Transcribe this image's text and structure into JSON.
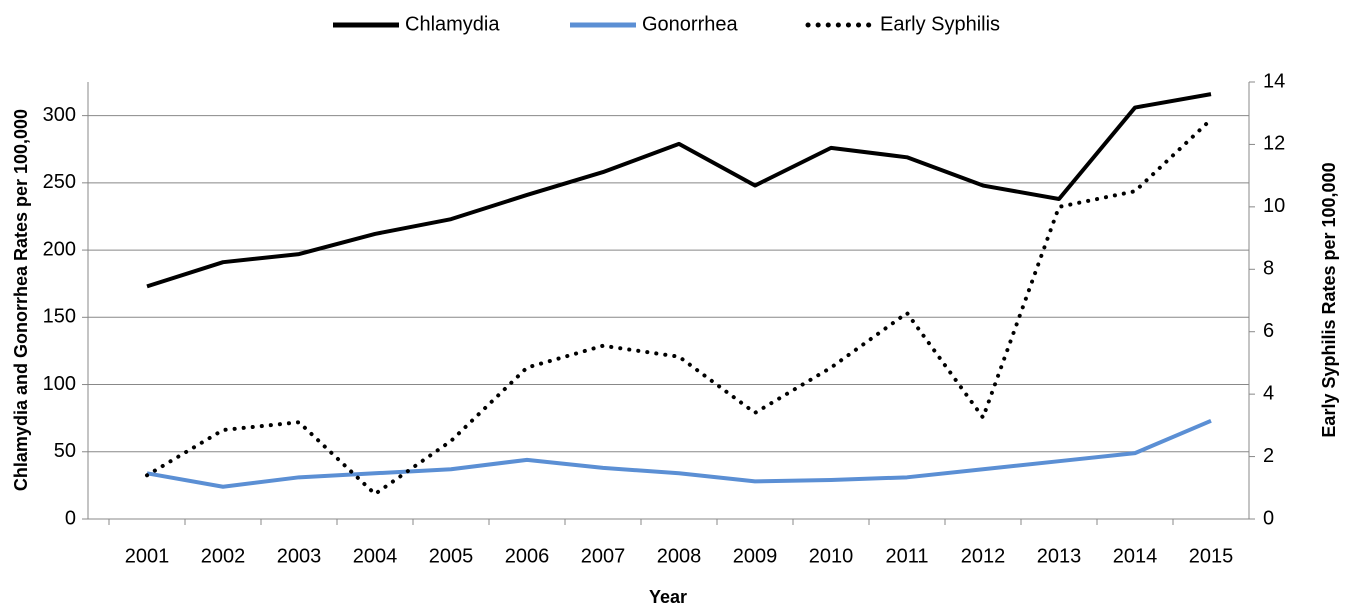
{
  "chart_data": {
    "type": "line",
    "x_label": "Year",
    "y_label": "Chlamydia and Gonorrhea Rates per 100,000",
    "y2_label": "Early Syphilis Rates per 100,000",
    "categories": [
      "2001",
      "2002",
      "2003",
      "2004",
      "2005",
      "2006",
      "2007",
      "2008",
      "2009",
      "2010",
      "2011",
      "2012",
      "2013",
      "2014",
      "2015"
    ],
    "series": [
      {
        "name": "Chlamydia",
        "color": "#000000",
        "style": "solid",
        "values": [
          173,
          191,
          197,
          212,
          223,
          241,
          258,
          279,
          248,
          276,
          269,
          248,
          238,
          306,
          316
        ]
      },
      {
        "name": "Gonorrhea",
        "color": "#5b8fd4",
        "style": "solid",
        "values": [
          34,
          24,
          31,
          34,
          37,
          44,
          38,
          34,
          28,
          29,
          31,
          37,
          43,
          49,
          73
        ]
      },
      {
        "name": "Early Syphilis",
        "color": "#000000",
        "style": "dotted",
        "axis": "y2",
        "values": [
          1.4,
          2.85,
          3.1,
          0.8,
          2.5,
          4.85,
          5.55,
          5.2,
          3.4,
          4.85,
          6.6,
          3.25,
          10,
          10.5,
          12.8
        ]
      }
    ],
    "ylim": [
      0,
      325
    ],
    "yticks": [
      0,
      50,
      100,
      150,
      200,
      250,
      300
    ],
    "y2lim": [
      0,
      14
    ],
    "y2ticks": [
      0,
      2,
      4,
      6,
      8,
      10,
      12,
      14
    ],
    "grid": true,
    "legend": "top"
  }
}
